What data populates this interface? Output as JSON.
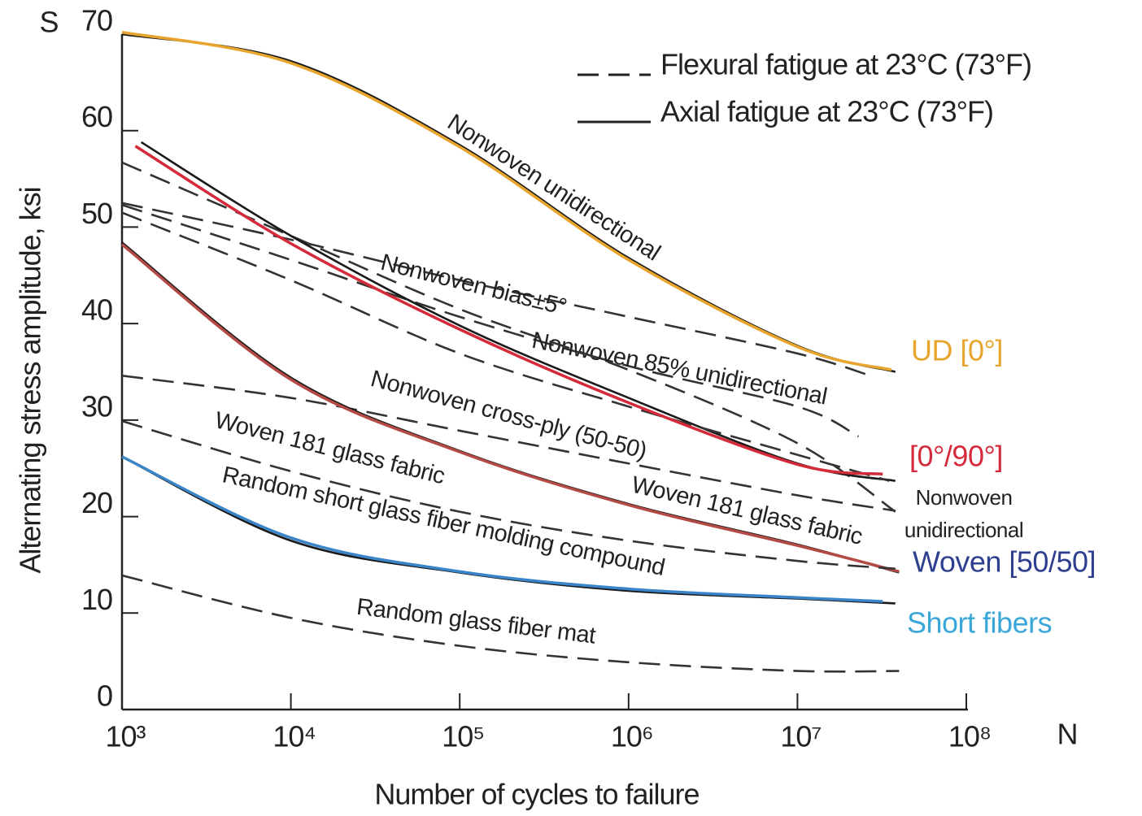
{
  "chart_data": {
    "type": "line",
    "y_symbol": "S",
    "x_symbol": "N",
    "y_label": "Alternating stress amplitude, ksi",
    "x_label": "Number of cycles to failure",
    "log_x": true,
    "grid": false,
    "xlim": [
      1000,
      100000000
    ],
    "ylim": [
      0,
      70
    ],
    "yticks": [
      0,
      10,
      20,
      30,
      40,
      50,
      60,
      70
    ],
    "xticks": [
      {
        "value": 1000,
        "label": "10³"
      },
      {
        "value": 10000,
        "label": "10⁴"
      },
      {
        "value": 100000,
        "label": "10⁵"
      },
      {
        "value": 1000000,
        "label": "10⁶"
      },
      {
        "value": 10000000,
        "label": "10⁷"
      },
      {
        "value": 100000000,
        "label": "10⁸"
      }
    ],
    "legend": [
      {
        "label": "Flexural fatigue at 23°C (73°F)",
        "style": "dashed"
      },
      {
        "label": "Axial fatigue at 23°C (73°F)",
        "style": "solid"
      }
    ],
    "series": [
      {
        "name": "Nonwoven unidirectional",
        "style": "solid",
        "color": "#1a1a1a",
        "x": [
          1000,
          10000,
          100000,
          1000000,
          10000000,
          38000000
        ],
        "values": [
          70,
          67.2,
          58.5,
          46.8,
          37.7,
          35.0
        ]
      },
      {
        "name": "UD [0°]",
        "style": "solid",
        "color": "#e8a52d",
        "label_color": "#e8a52d",
        "x": [
          1000,
          10000,
          100000,
          1000000,
          10000000,
          36000000
        ],
        "values": [
          70.2,
          67.0,
          58.3,
          46.6,
          37.6,
          35.2
        ]
      },
      {
        "name": "Nonwoven bias±5°",
        "style": "dashed",
        "color": "#333333",
        "x": [
          1000,
          10000,
          100000,
          1000000,
          10000000,
          27000000
        ],
        "values": [
          52.5,
          48.7,
          44.5,
          40.7,
          36.9,
          34.6
        ]
      },
      {
        "name": "Nonwoven 85% unidirectional",
        "style": "dashed",
        "color": "#333333",
        "x": [
          1000,
          10000,
          100000,
          1000000,
          10000000,
          23000000
        ],
        "values": [
          52.3,
          46.6,
          40.7,
          35.6,
          31.4,
          28.3
        ]
      },
      {
        "name": "Nonwoven unidirectional",
        "style": "dashed",
        "color": "#333333",
        "label_color": "#222222",
        "x": [
          1000,
          10000,
          100000,
          1000000,
          10000000,
          38000000
        ],
        "values": [
          56.7,
          49.1,
          41.5,
          35.2,
          27.6,
          20.5
        ]
      },
      {
        "style": "solid",
        "color": "#1a1a1a",
        "x": [
          1300,
          10000,
          100000,
          1000000,
          10000000,
          38000000
        ],
        "values": [
          58.8,
          49.1,
          39.8,
          32.3,
          25.5,
          23.7
        ]
      },
      {
        "name": "Nonwoven cross-ply (50-50)",
        "style": "dashed",
        "color": "#333333",
        "x": [
          1000,
          10000,
          100000,
          1000000,
          10000000,
          35000000
        ],
        "values": [
          51.5,
          44.5,
          36.9,
          31.4,
          26.4,
          23.7
        ]
      },
      {
        "name": "Woven 181 glass fabric",
        "style": "dashed",
        "color": "#333333",
        "x": [
          1000,
          10000,
          100000,
          1000000,
          10000000,
          38000000
        ],
        "values": [
          34.6,
          32.3,
          28.9,
          25.5,
          22.2,
          20.6
        ]
      },
      {
        "name": "Woven 181 glass fabric",
        "style": "solid",
        "color": "#1a1a1a",
        "x": [
          1000,
          10000,
          100000,
          1000000,
          10000000,
          40000000
        ],
        "values": [
          48.4,
          34.4,
          26.8,
          21.3,
          17.1,
          14.2
        ]
      },
      {
        "name": "Woven [50/50]",
        "style": "solid",
        "color": "#b34a45",
        "label_color": "#2e3f8f",
        "x": [
          1000,
          10000,
          100000,
          1000000,
          10000000,
          40000000
        ],
        "values": [
          48.2,
          34.2,
          26.7,
          21.2,
          17.0,
          14.3
        ]
      },
      {
        "name": "Random short glass fiber molding compound",
        "style": "dashed",
        "color": "#333333",
        "x": [
          1000,
          10000,
          100000,
          1000000,
          10000000,
          38000000
        ],
        "values": [
          29.9,
          24.7,
          20.5,
          17.5,
          15.4,
          14.6
        ]
      },
      {
        "style": "solid",
        "color": "#1a1a1a",
        "x": [
          1000,
          10000,
          100000,
          1000000,
          10000000,
          38000000
        ],
        "values": [
          26.2,
          17.5,
          14.2,
          12.3,
          11.5,
          11.0
        ]
      },
      {
        "name": "Short fibers",
        "style": "solid",
        "color": "#3a84c8",
        "label_color": "#3aa7d8",
        "x": [
          1000,
          10000,
          100000,
          1000000,
          10000000,
          32000000
        ],
        "values": [
          26.2,
          17.8,
          14.3,
          12.5,
          11.6,
          11.2
        ]
      },
      {
        "name": "Random glass fiber mat",
        "style": "dashed",
        "color": "#333333",
        "x": [
          1000,
          10000,
          100000,
          1000000,
          10000000,
          40000000
        ],
        "values": [
          13.9,
          9.5,
          6.6,
          4.9,
          4.0,
          4.0
        ]
      },
      {
        "name": "[0°/90°]",
        "style": "solid",
        "color": "#d42a3a",
        "label_color": "#d42a3a",
        "x": [
          1200,
          10000,
          100000,
          1000000,
          10000000,
          32000000
        ],
        "values": [
          58.4,
          48.3,
          39.4,
          31.8,
          25.4,
          24.4
        ]
      }
    ]
  }
}
